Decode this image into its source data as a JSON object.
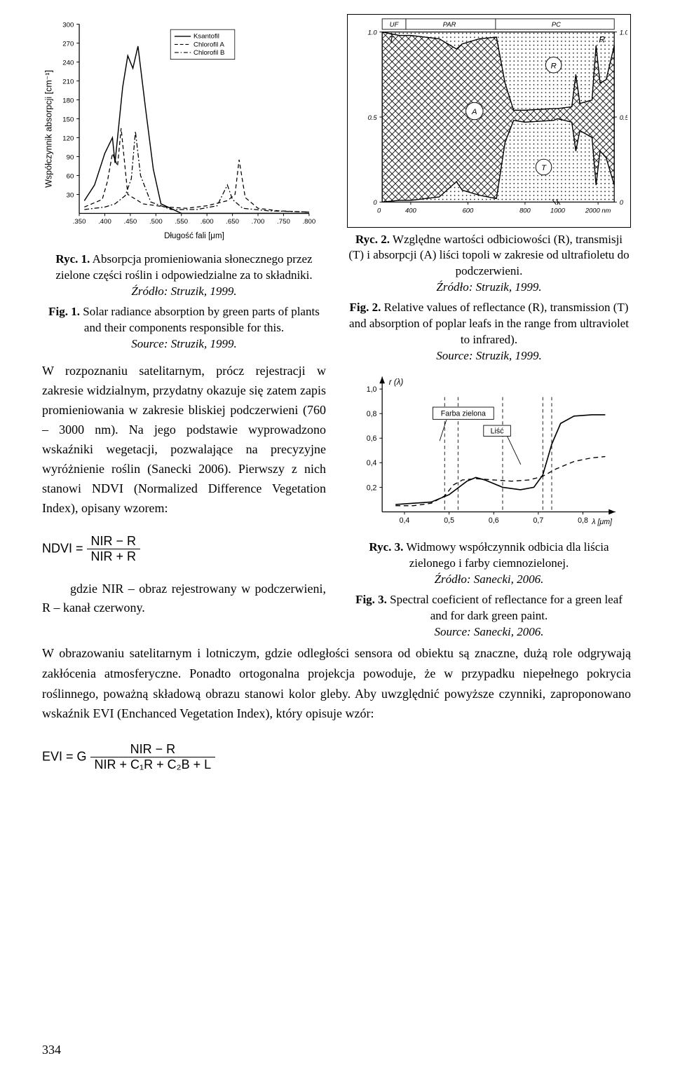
{
  "fig1": {
    "type": "line",
    "title_axis_y": "Współczynnik absorpcji [cm⁻¹]",
    "title_axis_x": "Długość fali [μm]",
    "legend": {
      "s1": "Ksantofil",
      "s2": "Chlorofil A",
      "s3": "Chlorofil B"
    },
    "xlim": [
      0.35,
      0.8
    ],
    "xtick_labels": [
      ".350",
      ".400",
      ".450",
      ".500",
      ".550",
      ".600",
      ".650",
      ".700",
      ".750",
      ".800"
    ],
    "ylim": [
      0,
      300
    ],
    "ytick_step": 30,
    "ytick_labels": [
      "30",
      "60",
      "90",
      "120",
      "150",
      "180",
      "210",
      "240",
      "270",
      "300"
    ],
    "background": "#ffffff",
    "axis_color": "#000000",
    "line_color": "#000000",
    "label_fontsize": 10,
    "series": {
      "ksantofil": {
        "style": "solid",
        "points": [
          [
            0.36,
            20
          ],
          [
            0.38,
            45
          ],
          [
            0.4,
            95
          ],
          [
            0.415,
            120
          ],
          [
            0.42,
            80
          ],
          [
            0.435,
            200
          ],
          [
            0.445,
            250
          ],
          [
            0.455,
            230
          ],
          [
            0.465,
            265
          ],
          [
            0.48,
            165
          ],
          [
            0.495,
            70
          ],
          [
            0.51,
            15
          ],
          [
            0.55,
            0
          ],
          [
            0.8,
            0
          ]
        ]
      },
      "chlorofilA": {
        "style": "dashed",
        "points": [
          [
            0.36,
            10
          ],
          [
            0.395,
            22
          ],
          [
            0.405,
            50
          ],
          [
            0.415,
            95
          ],
          [
            0.425,
            75
          ],
          [
            0.432,
            135
          ],
          [
            0.445,
            30
          ],
          [
            0.475,
            15
          ],
          [
            0.52,
            10
          ],
          [
            0.56,
            8
          ],
          [
            0.6,
            12
          ],
          [
            0.64,
            20
          ],
          [
            0.655,
            30
          ],
          [
            0.663,
            85
          ],
          [
            0.675,
            25
          ],
          [
            0.7,
            8
          ],
          [
            0.74,
            4
          ],
          [
            0.8,
            2
          ]
        ]
      },
      "chlorofilB": {
        "style": "dashdot",
        "points": [
          [
            0.36,
            6
          ],
          [
            0.4,
            10
          ],
          [
            0.42,
            15
          ],
          [
            0.44,
            28
          ],
          [
            0.452,
            55
          ],
          [
            0.46,
            130
          ],
          [
            0.47,
            60
          ],
          [
            0.49,
            18
          ],
          [
            0.53,
            6
          ],
          [
            0.58,
            6
          ],
          [
            0.62,
            12
          ],
          [
            0.64,
            45
          ],
          [
            0.65,
            22
          ],
          [
            0.67,
            8
          ],
          [
            0.72,
            4
          ],
          [
            0.8,
            2
          ]
        ]
      }
    },
    "caption_pl_bold": "Ryc. 1.",
    "caption_pl": " Absorpcja promieniowania słonecznego przez zielone części roślin i odpowiedzialne za to składniki. ",
    "caption_pl_src": "Źródło: Struzik, 1999.",
    "caption_en_bold": "Fig. 1.",
    "caption_en": " Solar radiance absorption by green parts of plants and their components responsible for this.",
    "caption_en_src": "Source:  Struzik, 1999."
  },
  "fig2": {
    "type": "area-diagram",
    "top_labels": {
      "uf": "UF",
      "par": "PAR",
      "pc": "PC"
    },
    "region_labels": {
      "T": "T",
      "R": "R",
      "A": "A"
    },
    "xtick_labels": [
      "400",
      "600",
      "800",
      "1000",
      "2000 nm"
    ],
    "ytick_left": [
      "0",
      "0.5",
      "1.0"
    ],
    "ytick_right": [
      "0",
      "0.5",
      "1.0"
    ],
    "background": "#ffffff",
    "axis_color": "#000000",
    "hatch_color": "#000000",
    "label_fontsize": 10,
    "caption_pl_bold": "Ryc. 2.",
    "caption_pl": " Względne wartości odbiciowości (R), transmisji (T) i absorpcji (A) liści topoli w zakresie od ultrafioletu do podczerwieni.",
    "caption_pl_src": "Źródło:  Struzik, 1999.",
    "caption_en_bold": "Fig. 2.",
    "caption_en": " Relative values of reflectance (R), transmission (T) and absorption of poplar leafs in the range from ultraviolet to infrared).",
    "caption_en_src": "Source:  Struzik, 1999.",
    "top_curve": [
      [
        0,
        1.0
      ],
      [
        360,
        0.98
      ],
      [
        400,
        0.98
      ],
      [
        450,
        0.97
      ],
      [
        500,
        0.96
      ],
      [
        540,
        0.92
      ],
      [
        560,
        0.9
      ],
      [
        580,
        0.93
      ],
      [
        640,
        0.96
      ],
      [
        700,
        0.97
      ],
      [
        730,
        0.7
      ],
      [
        760,
        0.54
      ],
      [
        800,
        0.54
      ],
      [
        900,
        0.55
      ],
      [
        1000,
        0.55
      ],
      [
        1350,
        0.56
      ],
      [
        1450,
        0.75
      ],
      [
        1550,
        0.58
      ],
      [
        1850,
        0.6
      ],
      [
        1950,
        0.92
      ],
      [
        2050,
        0.7
      ],
      [
        2200,
        0.72
      ],
      [
        2400,
        0.92
      ]
    ],
    "bot_curve": [
      [
        0,
        0.0
      ],
      [
        360,
        0.01
      ],
      [
        400,
        0.01
      ],
      [
        500,
        0.03
      ],
      [
        540,
        0.09
      ],
      [
        560,
        0.12
      ],
      [
        580,
        0.07
      ],
      [
        640,
        0.04
      ],
      [
        700,
        0.02
      ],
      [
        730,
        0.35
      ],
      [
        760,
        0.48
      ],
      [
        800,
        0.47
      ],
      [
        900,
        0.48
      ],
      [
        1000,
        0.49
      ],
      [
        1350,
        0.47
      ],
      [
        1450,
        0.3
      ],
      [
        1550,
        0.42
      ],
      [
        1850,
        0.38
      ],
      [
        1950,
        0.1
      ],
      [
        2050,
        0.3
      ],
      [
        2200,
        0.26
      ],
      [
        2400,
        0.1
      ]
    ]
  },
  "para1": "W rozpoznaniu satelitarnym, prócz rejestracji w zakresie widzialnym, przydatny okazuje się zatem zapis promieniowania w zakresie bliskiej podczerwieni (760 – 3000 nm). Na jego podstawie wyprowadzono wskaźniki wegetacji, pozwalające na precyzyjne wyróżnienie roślin (Sanecki 2006). Pierwszy z nich stanowi NDVI (Normalized Difference Vegetation Index), opisany wzorem:",
  "formula1": {
    "lhs": "NDVI =",
    "num": "NIR − R",
    "den": "NIR + R"
  },
  "para2_lead": "gdzie NIR – obraz rejestrowany w podczerwieni, R – kanał czerwony.",
  "fig3": {
    "type": "line",
    "ylab": "r (λ)",
    "xlab_unit": "λ [μm]",
    "legend": {
      "paint": "Farba zielona",
      "leaf": "Liść"
    },
    "xlim": [
      0.35,
      0.85
    ],
    "xticks": [
      0.4,
      0.5,
      0.6,
      0.7,
      0.8
    ],
    "xtick_labels": [
      "0,4",
      "0,5",
      "0,6",
      "0,7",
      "0,8"
    ],
    "ylim": [
      0,
      1.1
    ],
    "yticks": [
      0.2,
      0.4,
      0.6,
      0.8,
      1.0
    ],
    "ytick_labels": [
      "0,2",
      "0,4",
      "0,6",
      "0,8",
      "1,0"
    ],
    "vline_x": [
      0.49,
      0.52,
      0.62,
      0.71,
      0.73
    ],
    "background": "#ffffff",
    "axis_color": "#000000",
    "line_color": "#000000",
    "label_fontsize": 11,
    "series": {
      "leaf": {
        "style": "solid",
        "points": [
          [
            0.38,
            0.06
          ],
          [
            0.42,
            0.07
          ],
          [
            0.46,
            0.08
          ],
          [
            0.5,
            0.14
          ],
          [
            0.54,
            0.25
          ],
          [
            0.56,
            0.28
          ],
          [
            0.58,
            0.26
          ],
          [
            0.62,
            0.2
          ],
          [
            0.66,
            0.18
          ],
          [
            0.69,
            0.2
          ],
          [
            0.71,
            0.3
          ],
          [
            0.73,
            0.55
          ],
          [
            0.75,
            0.72
          ],
          [
            0.78,
            0.78
          ],
          [
            0.82,
            0.79
          ],
          [
            0.85,
            0.79
          ]
        ]
      },
      "paint": {
        "style": "dashed",
        "points": [
          [
            0.38,
            0.05
          ],
          [
            0.42,
            0.05
          ],
          [
            0.46,
            0.07
          ],
          [
            0.49,
            0.13
          ],
          [
            0.51,
            0.22
          ],
          [
            0.53,
            0.26
          ],
          [
            0.56,
            0.27
          ],
          [
            0.6,
            0.26
          ],
          [
            0.64,
            0.25
          ],
          [
            0.68,
            0.26
          ],
          [
            0.71,
            0.29
          ],
          [
            0.74,
            0.35
          ],
          [
            0.78,
            0.41
          ],
          [
            0.82,
            0.44
          ],
          [
            0.85,
            0.45
          ]
        ]
      }
    },
    "caption_pl_bold": "Ryc. 3.",
    "caption_pl": " Widmowy współczynnik odbicia dla liścia zielonego i farby ciemnozielonej.",
    "caption_pl_src": "Źródło: Sanecki, 2006.",
    "caption_en_bold": "Fig. 3.",
    "caption_en": " Spectral coeficient of reflectance for a green leaf and for dark green paint.",
    "caption_en_src": "Source: Sanecki, 2006."
  },
  "para_full": "W obrazowaniu satelitarnym i lotniczym, gdzie odległości sensora od obiektu są znaczne, dużą role odgrywają zakłócenia atmosferyczne. Ponadto ortogonalna projekcja powoduje, że w przypadku niepełnego pokrycia roślinnego, poważną składową obrazu stanowi kolor gleby. Aby uwzględnić powyższe czynniki, zaproponowano wskaźnik EVI (Enchanced Vegetation Index), który opisuje wzór:",
  "formula2": {
    "lhs": "EVI = G",
    "num": "NIR − R",
    "den": "NIR + C₁R + C₂B + L"
  },
  "page_number": "334"
}
